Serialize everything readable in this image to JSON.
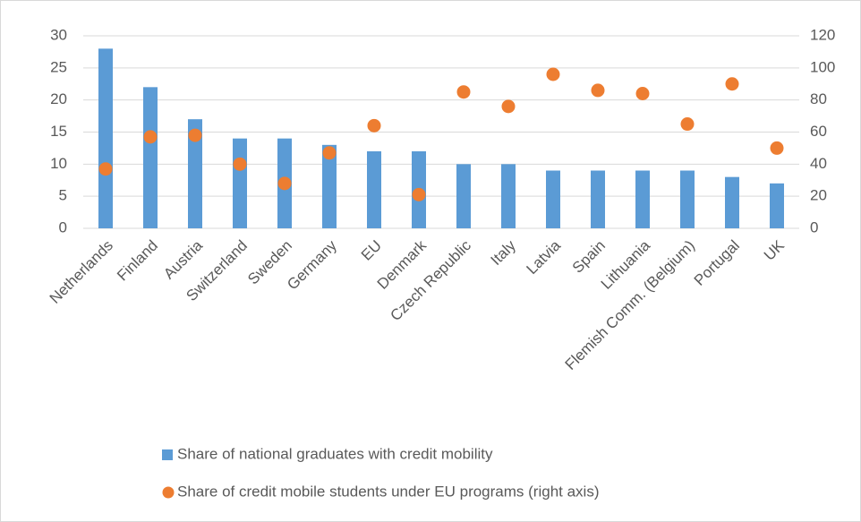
{
  "chart_data": {
    "type": "bar",
    "categories": [
      "Netherlands",
      "Finland",
      "Austria",
      "Switzerland",
      "Sweden",
      "Germany",
      "EU",
      "Denmark",
      "Czech Republic",
      "Italy",
      "Latvia",
      "Spain",
      "Lithuania",
      "Flemish Comm. (Belgium)",
      "Portugal",
      "UK"
    ],
    "series": [
      {
        "name": "Share of national graduates with credit mobility",
        "type": "bar",
        "color": "#5b9bd5",
        "values": [
          28,
          22,
          17,
          14,
          14,
          13,
          12,
          12,
          10,
          10,
          9,
          9,
          9,
          9,
          8,
          7
        ]
      },
      {
        "name": "Share of credit mobile students under EU programs (right axis)",
        "type": "scatter",
        "axis": "y2",
        "color": "#ed7d31",
        "values": [
          37,
          57,
          58,
          40,
          28,
          47,
          64,
          21,
          85,
          76,
          96,
          86,
          84,
          65,
          90,
          50
        ]
      }
    ],
    "ylim": [
      0,
      30
    ],
    "yticks": [
      0,
      5,
      10,
      15,
      20,
      25,
      30
    ],
    "y2lim": [
      0,
      120
    ],
    "y2ticks": [
      0,
      20,
      40,
      60,
      80,
      100,
      120
    ],
    "grid": true,
    "legend": "bottom"
  }
}
